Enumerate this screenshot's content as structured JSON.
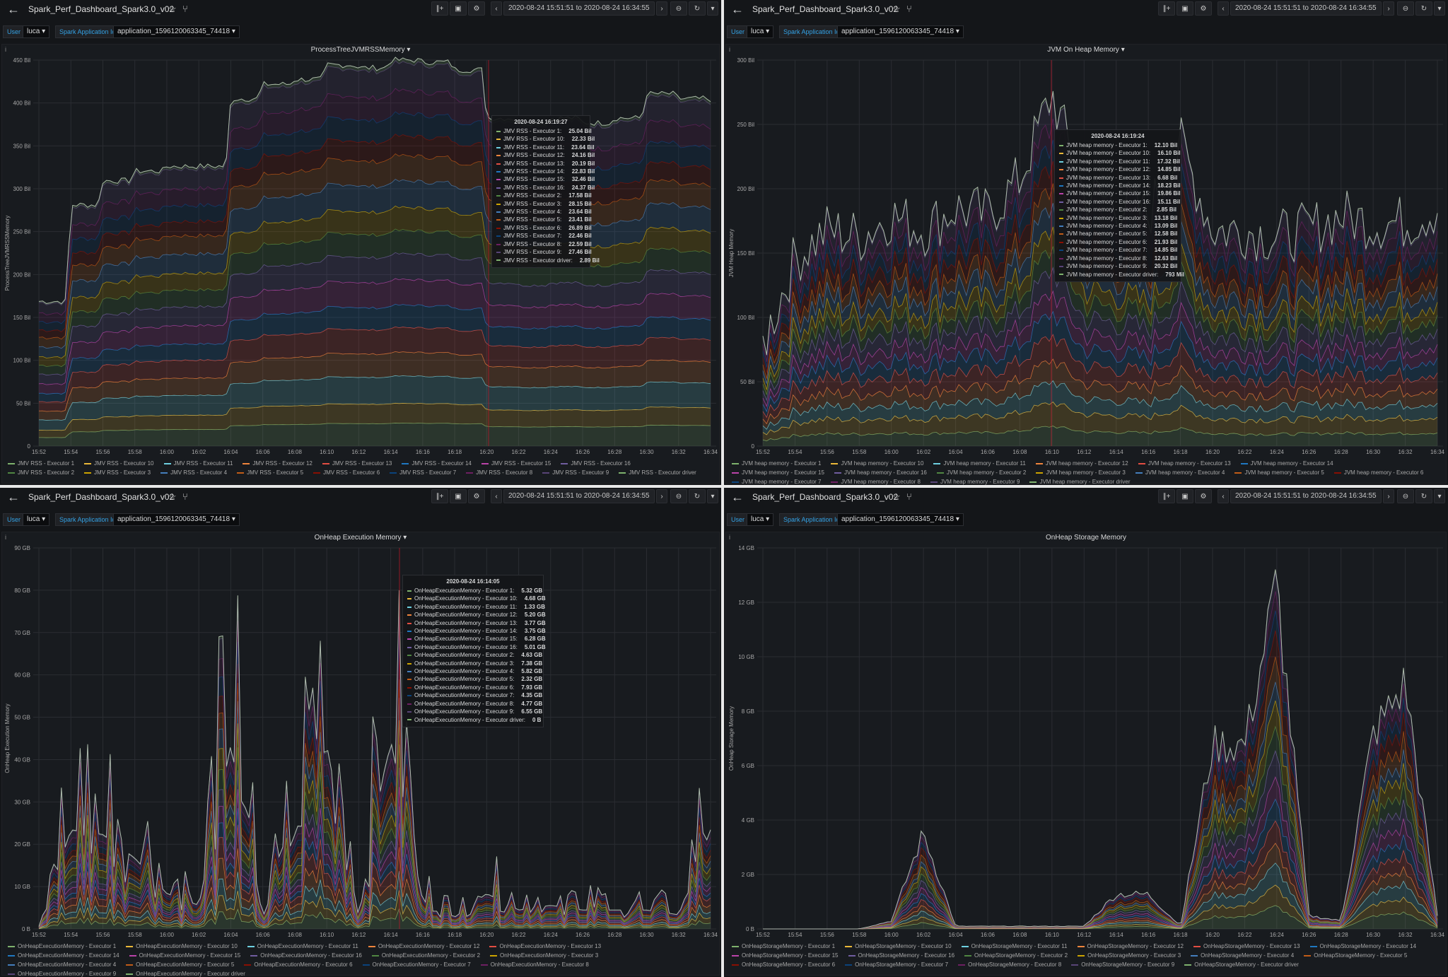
{
  "dashboard": {
    "title": "Spark_Perf_Dashboard_Spark3.0_v02",
    "time_range": "2020-08-24 15:51:51 to 2020-08-24 16:34:55",
    "var_user_label": "User",
    "var_user_value": "luca",
    "var_app_label": "Spark Application Id",
    "var_app_value": "application_1596120063345_74418"
  },
  "colors": [
    "#7eb26d",
    "#eab839",
    "#6ed0e0",
    "#ef843c",
    "#e24d42",
    "#1f78c1",
    "#ba43a9",
    "#705da0",
    "#508642",
    "#cca300",
    "#447ebc",
    "#c15c17",
    "#890f02",
    "#0a437c",
    "#6d1f62",
    "#584477"
  ],
  "panels": [
    {
      "title": "ProcessTreeJVMRSSMemory",
      "ylabel": "ProcessTreeJVMRSSMemory",
      "unit_labels": [
        "0",
        "50 Bil",
        "100 Bil",
        "150 Bil",
        "200 Bil",
        "250 Bil",
        "300 Bil",
        "350 Bil",
        "400 Bil",
        "450 Bil"
      ],
      "xticks": [
        "15:52",
        "15:54",
        "15:56",
        "15:58",
        "16:00",
        "16:02",
        "16:04",
        "16:06",
        "16:08",
        "16:10",
        "16:12",
        "16:14",
        "16:16",
        "16:18",
        "16:20",
        "16:22",
        "16:24",
        "16:26",
        "16:28",
        "16:30",
        "16:32",
        "16:34"
      ],
      "legend": [
        "JMV RSS - Executor 1",
        "JMV RSS - Executor 10",
        "JMV RSS - Executor 11",
        "JMV RSS - Executor 12",
        "JMV RSS - Executor 13",
        "JMV RSS - Executor 14",
        "JMV RSS - Executor 15",
        "JMV RSS - Executor 16",
        "JMV RSS - Executor 2",
        "JMV RSS - Executor 3",
        "JMV RSS - Executor 4",
        "JMV RSS - Executor 5",
        "JMV RSS - Executor 6",
        "JMV RSS - Executor 7",
        "JMV RSS - Executor 8",
        "JMV RSS - Executor 9",
        "JMV RSS - Executor driver"
      ],
      "tooltip": {
        "time": "2020-08-24 16:19:27",
        "rows": [
          [
            "JMV RSS - Executor 1:",
            "25.04 Bil"
          ],
          [
            "JMV RSS - Executor 10:",
            "22.33 Bil"
          ],
          [
            "JMV RSS - Executor 11:",
            "23.64 Bil"
          ],
          [
            "JMV RSS - Executor 12:",
            "24.16 Bil"
          ],
          [
            "JMV RSS - Executor 13:",
            "20.19 Bil"
          ],
          [
            "JMV RSS - Executor 14:",
            "22.83 Bil"
          ],
          [
            "JMV RSS - Executor 15:",
            "32.46 Bil"
          ],
          [
            "JMV RSS - Executor 16:",
            "24.37 Bil"
          ],
          [
            "JMV RSS - Executor 2:",
            "17.58 Bil"
          ],
          [
            "JMV RSS - Executor 3:",
            "28.15 Bil"
          ],
          [
            "JMV RSS - Executor 4:",
            "23.64 Bil"
          ],
          [
            "JMV RSS - Executor 5:",
            "23.41 Bil"
          ],
          [
            "JMV RSS - Executor 6:",
            "26.89 Bil"
          ],
          [
            "JMV RSS - Executor 7:",
            "22.46 Bil"
          ],
          [
            "JMV RSS - Executor 8:",
            "22.59 Bil"
          ],
          [
            "JMV RSS - Executor 9:",
            "27.46 Bil"
          ],
          [
            "JMV RSS - Executor driver:",
            "2.89 Bil"
          ]
        ]
      }
    },
    {
      "title": "JVM On Heap Memory",
      "ylabel": "JVM Heap Memory",
      "unit_labels": [
        "0",
        "50 Bil",
        "100 Bil",
        "150 Bil",
        "200 Bil",
        "250 Bil",
        "300 Bil"
      ],
      "xticks": [
        "15:52",
        "15:54",
        "15:56",
        "15:58",
        "16:00",
        "16:02",
        "16:04",
        "16:06",
        "16:08",
        "16:10",
        "16:12",
        "16:14",
        "16:16",
        "16:18",
        "16:20",
        "16:22",
        "16:24",
        "16:26",
        "16:28",
        "16:30",
        "16:32",
        "16:34"
      ],
      "legend": [
        "JVM heap memory - Executor 1",
        "JVM heap memory - Executor 10",
        "JVM heap memory - Executor 11",
        "JVM heap memory - Executor 12",
        "JVM heap memory - Executor 13",
        "JVM heap memory - Executor 14",
        "JVM heap memory - Executor 15",
        "JVM heap memory - Executor 16",
        "JVM heap memory - Executor 2",
        "JVM heap memory - Executor 3",
        "JVM heap memory - Executor 4",
        "JVM heap memory - Executor 5",
        "JVM heap memory - Executor 6",
        "JVM heap memory - Executor 7",
        "JVM heap memory - Executor 8",
        "JVM heap memory - Executor 9",
        "JVM heap memory - Executor driver"
      ],
      "tooltip": {
        "time": "2020-08-24 16:19:24",
        "rows": [
          [
            "JVM heap memory - Executor 1:",
            "12.10 Bil"
          ],
          [
            "JVM heap memory - Executor 10:",
            "16.10 Bil"
          ],
          [
            "JVM heap memory - Executor 11:",
            "17.32 Bil"
          ],
          [
            "JVM heap memory - Executor 12:",
            "14.85 Bil"
          ],
          [
            "JVM heap memory - Executor 13:",
            "6.68 Bil"
          ],
          [
            "JVM heap memory - Executor 14:",
            "18.23 Bil"
          ],
          [
            "JVM heap memory - Executor 15:",
            "19.86 Bil"
          ],
          [
            "JVM heap memory - Executor 16:",
            "15.11 Bil"
          ],
          [
            "JVM heap memory - Executor 2:",
            "2.85 Bil"
          ],
          [
            "JVM heap memory - Executor 3:",
            "13.18 Bil"
          ],
          [
            "JVM heap memory - Executor 4:",
            "13.09 Bil"
          ],
          [
            "JVM heap memory - Executor 5:",
            "12.58 Bil"
          ],
          [
            "JVM heap memory - Executor 6:",
            "21.93 Bil"
          ],
          [
            "JVM heap memory - Executor 7:",
            "14.85 Bil"
          ],
          [
            "JVM heap memory - Executor 8:",
            "12.63 Bil"
          ],
          [
            "JVM heap memory - Executor 9:",
            "20.32 Bil"
          ],
          [
            "JVM heap memory - Executor driver:",
            "793 Mil"
          ]
        ]
      }
    },
    {
      "title": "OnHeap Execution Memory",
      "ylabel": "OnHeap Execution Memory",
      "unit_labels": [
        "0 B",
        "10 GB",
        "20 GB",
        "30 GB",
        "40 GB",
        "50 GB",
        "60 GB",
        "70 GB",
        "80 GB",
        "90 GB"
      ],
      "xticks": [
        "15:52",
        "15:54",
        "15:56",
        "15:58",
        "16:00",
        "16:02",
        "16:04",
        "16:06",
        "16:08",
        "16:10",
        "16:12",
        "16:14",
        "16:16",
        "16:18",
        "16:20",
        "16:22",
        "16:24",
        "16:26",
        "16:28",
        "16:30",
        "16:32",
        "16:34"
      ],
      "legend": [
        "OnHeapExecutionMemory - Executor 1",
        "OnHeapExecutionMemory - Executor 10",
        "OnHeapExecutionMemory - Executor 11",
        "OnHeapExecutionMemory - Executor 12",
        "OnHeapExecutionMemory - Executor 13",
        "OnHeapExecutionMemory - Executor 14",
        "OnHeapExecutionMemory - Executor 15",
        "OnHeapExecutionMemory - Executor 16",
        "OnHeapExecutionMemory - Executor 2",
        "OnHeapExecutionMemory - Executor 3",
        "OnHeapExecutionMemory - Executor 4",
        "OnHeapExecutionMemory - Executor 5",
        "OnHeapExecutionMemory - Executor 6",
        "OnHeapExecutionMemory - Executor 7",
        "OnHeapExecutionMemory - Executor 8",
        "OnHeapExecutionMemory - Executor 9",
        "OnHeapExecutionMemory - Executor driver"
      ],
      "tooltip": {
        "time": "2020-08-24 16:14:05",
        "rows": [
          [
            "OnHeapExecutionMemory - Executor 1:",
            "5.32 GB"
          ],
          [
            "OnHeapExecutionMemory - Executor 10:",
            "4.68 GB"
          ],
          [
            "OnHeapExecutionMemory - Executor 11:",
            "1.33 GB"
          ],
          [
            "OnHeapExecutionMemory - Executor 12:",
            "5.20 GB"
          ],
          [
            "OnHeapExecutionMemory - Executor 13:",
            "3.77 GB"
          ],
          [
            "OnHeapExecutionMemory - Executor 14:",
            "3.75 GB"
          ],
          [
            "OnHeapExecutionMemory - Executor 15:",
            "6.28 GB"
          ],
          [
            "OnHeapExecutionMemory - Executor 16:",
            "5.01 GB"
          ],
          [
            "OnHeapExecutionMemory - Executor 2:",
            "4.63 GB"
          ],
          [
            "OnHeapExecutionMemory - Executor 3:",
            "7.38 GB"
          ],
          [
            "OnHeapExecutionMemory - Executor 4:",
            "5.82 GB"
          ],
          [
            "OnHeapExecutionMemory - Executor 5:",
            "2.32 GB"
          ],
          [
            "OnHeapExecutionMemory - Executor 6:",
            "7.93 GB"
          ],
          [
            "OnHeapExecutionMemory - Executor 7:",
            "4.35 GB"
          ],
          [
            "OnHeapExecutionMemory - Executor 8:",
            "4.77 GB"
          ],
          [
            "OnHeapExecutionMemory - Executor 9:",
            "6.55 GB"
          ],
          [
            "OnHeapExecutionMemory - Executor driver:",
            "0 B"
          ]
        ]
      }
    },
    {
      "title": "OnHeap Storage Memory",
      "ylabel": "OnHeap Storage Memory",
      "unit_labels": [
        "0 B",
        "2 GB",
        "4 GB",
        "6 GB",
        "8 GB",
        "10 GB",
        "12 GB",
        "14 GB"
      ],
      "xticks": [
        "15:52",
        "15:54",
        "15:56",
        "15:58",
        "16:00",
        "16:02",
        "16:04",
        "16:06",
        "16:08",
        "16:10",
        "16:12",
        "16:14",
        "16:16",
        "16:18",
        "16:20",
        "16:22",
        "16:24",
        "16:26",
        "16:28",
        "16:30",
        "16:32",
        "16:34"
      ],
      "legend": [
        "OnHeapStorageMemory - Executor 1",
        "OnHeapStorageMemory - Executor 10",
        "OnHeapStorageMemory - Executor 11",
        "OnHeapStorageMemory - Executor 12",
        "OnHeapStorageMemory - Executor 13",
        "OnHeapStorageMemory - Executor 14",
        "OnHeapStorageMemory - Executor 15",
        "OnHeapStorageMemory - Executor 16",
        "OnHeapStorageMemory - Executor 2",
        "OnHeapStorageMemory - Executor 3",
        "OnHeapStorageMemory - Executor 4",
        "OnHeapStorageMemory - Executor 5",
        "OnHeapStorageMemory - Executor 6",
        "OnHeapStorageMemory - Executor 7",
        "OnHeapStorageMemory - Executor 8",
        "OnHeapStorageMemory - Executor 9",
        "OnHeapStorageMemory - Executor driver"
      ],
      "tooltip": null
    }
  ],
  "chart_data": [
    {
      "type": "area",
      "title": "ProcessTreeJVMRSSMemory",
      "ylabel": "ProcessTreeJVMRSSMemory",
      "ylim": [
        0,
        450
      ],
      "stacked": true,
      "x": [
        "15:52",
        "15:54",
        "15:56",
        "15:58",
        "16:00",
        "16:02",
        "16:04",
        "16:06",
        "16:08",
        "16:10",
        "16:12",
        "16:14",
        "16:16",
        "16:18",
        "16:20",
        "16:22",
        "16:24",
        "16:26",
        "16:28",
        "16:30",
        "16:32",
        "16:34"
      ],
      "total": [
        150,
        250,
        275,
        285,
        290,
        290,
        360,
        375,
        380,
        395,
        392,
        400,
        398,
        390,
        340,
        335,
        340,
        335,
        340,
        365,
        360,
        355
      ]
    },
    {
      "type": "area",
      "title": "JVM On Heap Memory",
      "ylabel": "JVM Heap Memory",
      "ylim": [
        0,
        300
      ],
      "stacked": true,
      "x": [
        "15:52",
        "15:54",
        "15:56",
        "15:58",
        "16:00",
        "16:02",
        "16:04",
        "16:06",
        "16:08",
        "16:10",
        "16:12",
        "16:14",
        "16:16",
        "16:18",
        "16:20",
        "16:22",
        "16:24",
        "16:26",
        "16:28",
        "16:30",
        "16:32",
        "16:34"
      ],
      "total": [
        70,
        130,
        150,
        145,
        160,
        150,
        165,
        160,
        185,
        245,
        175,
        170,
        160,
        210,
        150,
        150,
        145,
        150,
        160,
        155,
        155,
        165
      ]
    },
    {
      "type": "area",
      "title": "OnHeap Execution Memory",
      "ylabel": "OnHeap Execution Memory",
      "ylim": [
        0,
        90
      ],
      "stacked": true,
      "x": [
        "15:52",
        "15:54",
        "15:56",
        "15:58",
        "16:00",
        "16:02",
        "16:04",
        "16:06",
        "16:08",
        "16:10",
        "16:12",
        "16:14",
        "16:16",
        "16:18",
        "16:20",
        "16:22",
        "16:24",
        "16:26",
        "16:28",
        "16:30",
        "16:32",
        "16:34"
      ],
      "total": [
        1,
        42,
        40,
        30,
        15,
        10,
        78,
        5,
        40,
        78,
        5,
        80,
        12,
        5,
        15,
        8,
        10,
        8,
        8,
        8,
        6,
        42
      ]
    },
    {
      "type": "area",
      "title": "OnHeap Storage Memory",
      "ylabel": "OnHeap Storage Memory",
      "ylim": [
        0,
        14
      ],
      "stacked": true,
      "x": [
        "15:52",
        "15:54",
        "15:56",
        "15:58",
        "16:00",
        "16:02",
        "16:04",
        "16:06",
        "16:08",
        "16:10",
        "16:12",
        "16:14",
        "16:16",
        "16:18",
        "16:20",
        "16:22",
        "16:24",
        "16:26",
        "16:28",
        "16:30",
        "16:32",
        "16:34"
      ],
      "total": [
        0,
        0,
        0,
        0,
        0.3,
        3.6,
        0.1,
        0.1,
        0.1,
        0.1,
        0.1,
        1.3,
        1.3,
        0.1,
        6.9,
        6.9,
        12.9,
        0.5,
        0.3,
        7.3,
        9.2,
        0.5
      ]
    }
  ]
}
